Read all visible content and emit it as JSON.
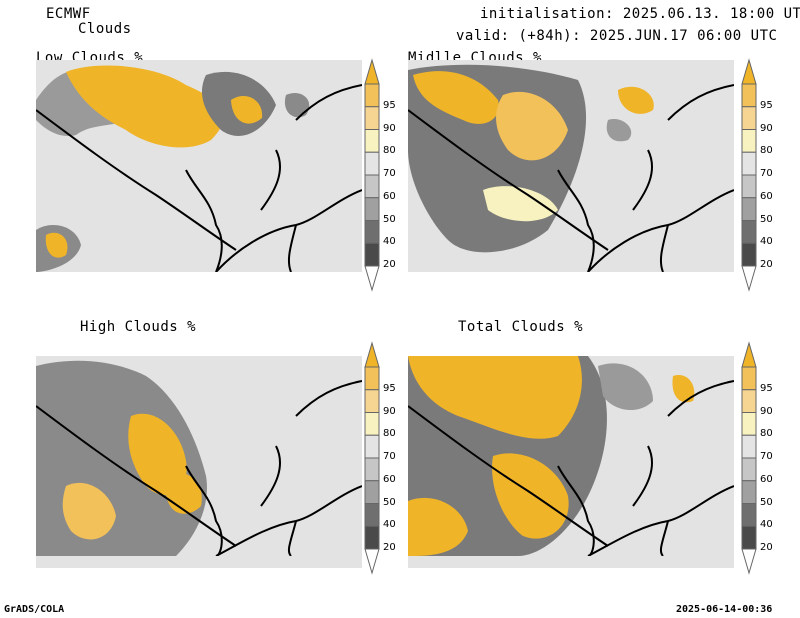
{
  "header": {
    "model": "ECMWF",
    "product": "Clouds",
    "init": "initialisation: 2025.06.13. 18:00 UTC",
    "valid": "valid: (+84h): 2025.JUN.17 06:00 UTC"
  },
  "panels": [
    {
      "title": "Low Clouds %"
    },
    {
      "title": "Midlle Clouds %"
    },
    {
      "title": "High Clouds %"
    },
    {
      "title": "Total Clouds %"
    }
  ],
  "colorbar": {
    "levels": [
      "95",
      "90",
      "80",
      "70",
      "60",
      "50",
      "40",
      "20"
    ],
    "colors": [
      "#f0b429",
      "#f3c15a",
      "#f6d593",
      "#f7f2bf",
      "#e4e4e4",
      "#c6c6c6",
      "#a0a0a0",
      "#6f6f6f",
      "#4a4a4a",
      "#ffffff"
    ]
  },
  "footer": {
    "left": "GrADS/COLA",
    "right": "2025-06-14-00:36"
  }
}
